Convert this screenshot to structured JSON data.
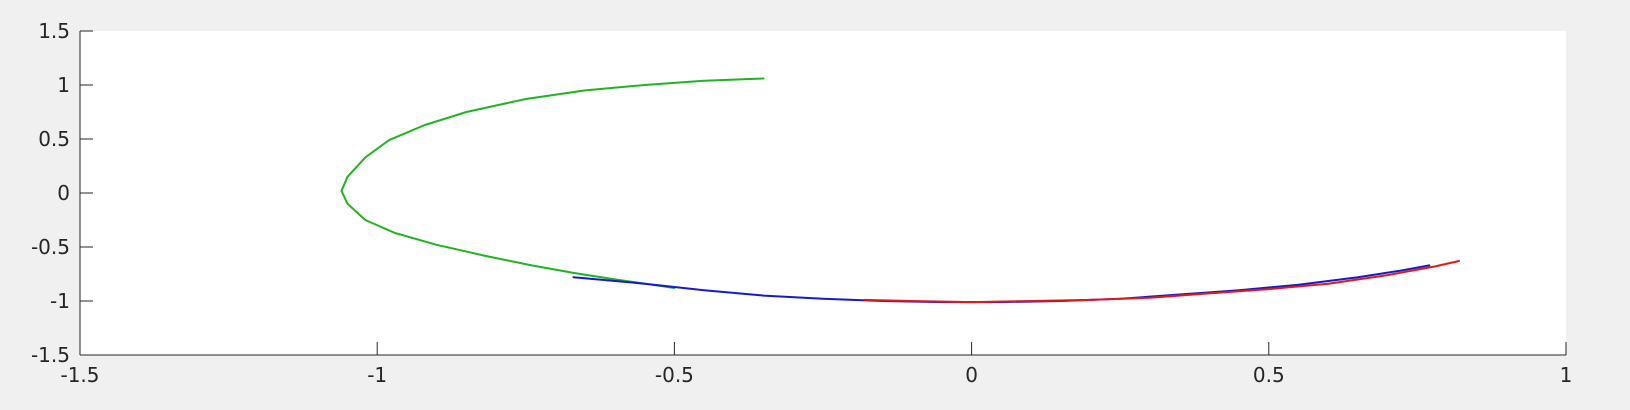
{
  "window": {
    "background": "#f0f0f0"
  },
  "chart_data": {
    "type": "line",
    "title": "",
    "xlabel": "",
    "ylabel": "",
    "xlim": [
      -1.5,
      1
    ],
    "ylim": [
      -1.5,
      1.5
    ],
    "x_ticks": [
      -1.5,
      -1,
      -0.5,
      0,
      0.5,
      1
    ],
    "x_tick_labels": [
      "-1.5",
      "-1",
      "-0.5",
      "0",
      "0.5",
      "1"
    ],
    "y_ticks": [
      1.5,
      1,
      0.5,
      0,
      -0.5,
      -1,
      -1.5
    ],
    "y_tick_labels": [
      "1.5",
      "1",
      "0.5",
      "0",
      "-0.5",
      "-1",
      "-1.5"
    ],
    "grid": false,
    "legend": "none",
    "axes_color": "#262626",
    "plot_background": "#ffffff",
    "series": [
      {
        "color": "#22b322",
        "x": [
          -0.35,
          -0.45,
          -0.55,
          -0.65,
          -0.75,
          -0.85,
          -0.92,
          -0.98,
          -1.02,
          -1.05,
          -1.06,
          -1.05,
          -1.02,
          -0.97,
          -0.9,
          -0.82,
          -0.74,
          -0.67,
          -0.6,
          -0.5
        ],
        "y": [
          1.06,
          1.04,
          1.0,
          0.95,
          0.87,
          0.75,
          0.63,
          0.49,
          0.33,
          0.15,
          0.02,
          -0.1,
          -0.25,
          -0.37,
          -0.48,
          -0.58,
          -0.67,
          -0.74,
          -0.8,
          -0.88
        ]
      },
      {
        "color": "#1919cc",
        "x": [
          -0.67,
          -0.55,
          -0.45,
          -0.35,
          -0.25,
          -0.15,
          -0.05,
          0.05,
          0.15,
          0.25,
          0.35,
          0.45,
          0.55,
          0.65,
          0.72,
          0.77
        ],
        "y": [
          -0.78,
          -0.84,
          -0.9,
          -0.95,
          -0.98,
          -1.0,
          -1.01,
          -1.01,
          -1.0,
          -0.98,
          -0.94,
          -0.9,
          -0.85,
          -0.78,
          -0.72,
          -0.67
        ]
      },
      {
        "color": "#e01a1a",
        "x": [
          -0.18,
          -0.1,
          0.0,
          0.1,
          0.2,
          0.3,
          0.4,
          0.5,
          0.6,
          0.7,
          0.78,
          0.82
        ],
        "y": [
          -0.99,
          -1.0,
          -1.01,
          -1.0,
          -0.99,
          -0.97,
          -0.93,
          -0.89,
          -0.84,
          -0.76,
          -0.68,
          -0.63
        ]
      }
    ]
  }
}
